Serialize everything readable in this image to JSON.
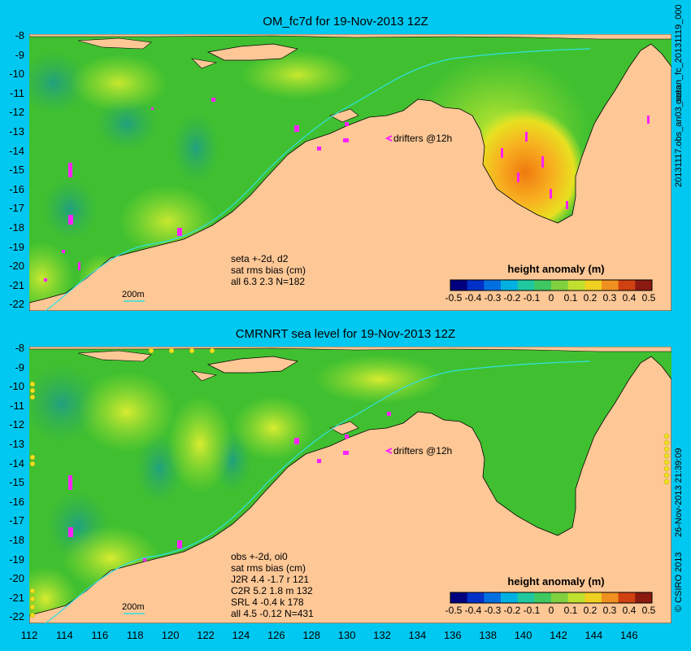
{
  "panels": [
    {
      "title": "OM_fc7d for 19-Nov-2013 12Z",
      "stats_lines": [
        "seta +-2d, d2",
        "sat rms bias (cm)",
        "all 6.3 2.3 N=182"
      ],
      "drifters_label": "drifters @12h",
      "contour_label": "200m",
      "colorbar_title": "height anomaly (m)",
      "right_label": "ocean_fc_20131119_000",
      "right_label_2": "20131117.obs_an03_seta"
    },
    {
      "title": "CMRNRT sea level  for 19-Nov-2013 12Z",
      "stats_lines": [
        "obs +-2d, oi0",
        "sat rms bias (cm)",
        "J2R   4.4 -1.7 r 121",
        "C2R   5.2 1.8 m 132",
        "SRL    4 -0.4 k 178",
        "all   4.5 -0.12 N=431"
      ],
      "drifters_label": "drifters @12h",
      "contour_label": "200m",
      "colorbar_title": "height anomaly (m)",
      "right_label": "26-Nov-2013 21:39:09",
      "right_label_2": "© CSIRO 2013"
    }
  ],
  "y_ticks": [
    "-8",
    "-9",
    "-10",
    "-11",
    "-12",
    "-13",
    "-14",
    "-15",
    "-16",
    "-17",
    "-18",
    "-19",
    "-20",
    "-21",
    "-22"
  ],
  "x_ticks": [
    "112",
    "114",
    "116",
    "118",
    "120",
    "122",
    "124",
    "126",
    "128",
    "130",
    "132",
    "134",
    "136",
    "138",
    "140",
    "142",
    "144",
    "146"
  ],
  "colorbar_ticks": [
    "-0.5",
    "-0.4",
    "-0.3",
    "-0.2",
    "-0.1",
    "0",
    "0.1",
    "0.2",
    "0.3",
    "0.4",
    "0.5"
  ],
  "colors": {
    "background": "#00c8f0",
    "land": "#fdc796",
    "ocean": "#40c030",
    "drifters": "#ff20ff",
    "contour_200m": "#30e0e0"
  }
}
